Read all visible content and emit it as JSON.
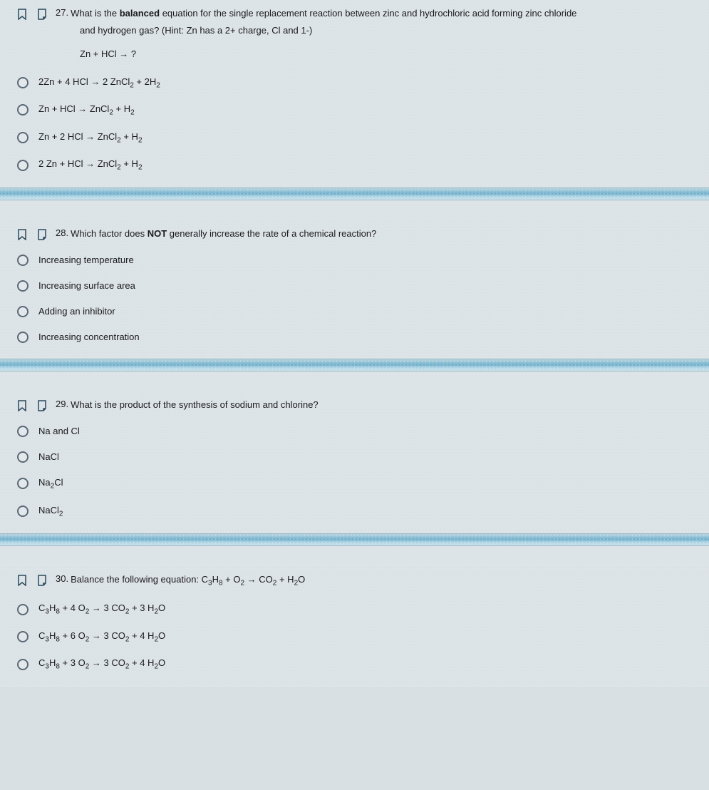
{
  "questions": [
    {
      "num": "27.",
      "text_pre": "What is the ",
      "text_bold": "balanced",
      "text_post": " equation for the single replacement reaction between zinc and hydrochloric acid forming zinc chloride",
      "hint": "and hydrogen gas?  (Hint: Zn has a 2+ charge, Cl and 1-)",
      "extra": "Zn + HCl  →   ?",
      "options": [
        {
          "html": "2Zn + 4 HCl   →   2 ZnCl<span class='sub'>2</span> + 2H<span class='sub'>2</span>"
        },
        {
          "html": "Zn + HCl  →   ZnCl<span class='sub'>2</span> + H<span class='sub'>2</span>"
        },
        {
          "html": "Zn + 2 HCl  →   ZnCl<span class='sub'>2</span> + H<span class='sub'>2</span>"
        },
        {
          "html": "2 Zn + HCl  →   ZnCl<span class='sub'>2</span> + H<span class='sub'>2</span>"
        }
      ]
    },
    {
      "num": "28.",
      "text_pre": "Which factor does ",
      "text_bold": "NOT",
      "text_post": " generally increase the rate of a chemical reaction?",
      "hint": "",
      "extra": "",
      "options": [
        {
          "html": "Increasing temperature"
        },
        {
          "html": "Increasing surface area"
        },
        {
          "html": "Adding an inhibitor"
        },
        {
          "html": "Increasing concentration"
        }
      ]
    },
    {
      "num": "29.",
      "text_pre": "What is the product of the synthesis of sodium and chlorine?",
      "text_bold": "",
      "text_post": "",
      "hint": "",
      "extra": "",
      "options": [
        {
          "html": "Na and Cl"
        },
        {
          "html": "NaCl"
        },
        {
          "html": "Na<span class='sub'>2</span>Cl"
        },
        {
          "html": "NaCl<span class='sub'>2</span>"
        }
      ]
    },
    {
      "num": "30.",
      "text_pre": "Balance the following equation: C",
      "text_bold": "",
      "text_post": "",
      "hint": "",
      "extra": "",
      "title_html": "Balance the following equation: C<span class='sub'>3</span>H<span class='sub'>8</span> + O<span class='sub'>2</span> → CO<span class='sub'>2</span> + H<span class='sub'>2</span>O",
      "options": [
        {
          "html": "C<span class='sub'>3</span>H<span class='sub'>8</span> + 4 O<span class='sub'>2</span> → 3 CO<span class='sub'>2</span> + 3 H<span class='sub'>2</span>O"
        },
        {
          "html": "C<span class='sub'>3</span>H<span class='sub'>8</span> + 6 O<span class='sub'>2</span> → 3 CO<span class='sub'>2</span> + 4 H<span class='sub'>2</span>O"
        },
        {
          "html": "C<span class='sub'>3</span>H<span class='sub'>8</span> + 3 O<span class='sub'>2</span> → 3 CO<span class='sub'>2</span> + 4 H<span class='sub'>2</span>O"
        }
      ]
    }
  ],
  "colors": {
    "bg": "#dde4e8",
    "text": "#1a1a1a",
    "radio_border": "#5a6a75",
    "divider_mid": "#6aa8c4"
  }
}
